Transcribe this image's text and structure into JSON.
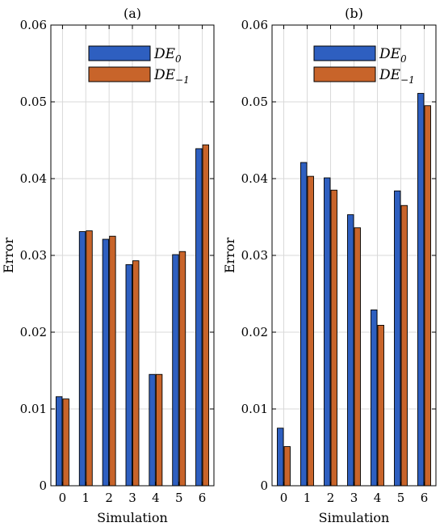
{
  "colors": {
    "series_0": "#2e5fc0",
    "series_1": "#c8642a",
    "grid": "#d9d9d9",
    "axis": "#000000"
  },
  "chart_data": [
    {
      "type": "bar",
      "title": "(a)",
      "xlabel": "Simulation",
      "ylabel": "Error",
      "categories": [
        "0",
        "1",
        "2",
        "3",
        "4",
        "5",
        "6"
      ],
      "ylim": [
        0,
        0.06
      ],
      "yticks": [
        "0",
        "0.01",
        "0.02",
        "0.03",
        "0.04",
        "0.05",
        "0.06"
      ],
      "grid": true,
      "legend_position": "top-right",
      "series": [
        {
          "name": "DE",
          "subscript": "0",
          "values": [
            0.0116,
            0.0331,
            0.0321,
            0.0288,
            0.0145,
            0.0301,
            0.0439
          ]
        },
        {
          "name": "DE",
          "subscript": "−1",
          "values": [
            0.0113,
            0.0332,
            0.0325,
            0.0293,
            0.0145,
            0.0305,
            0.0444
          ]
        }
      ]
    },
    {
      "type": "bar",
      "title": "(b)",
      "xlabel": "Simulation",
      "ylabel": "Error",
      "categories": [
        "0",
        "1",
        "2",
        "3",
        "4",
        "5",
        "6"
      ],
      "ylim": [
        0,
        0.06
      ],
      "yticks": [
        "0",
        "0.01",
        "0.02",
        "0.03",
        "0.04",
        "0.05",
        "0.06"
      ],
      "grid": true,
      "legend_position": "top-right",
      "series": [
        {
          "name": "DE",
          "subscript": "0",
          "values": [
            0.0075,
            0.0421,
            0.0401,
            0.0353,
            0.0229,
            0.0384,
            0.0511
          ]
        },
        {
          "name": "DE",
          "subscript": "−1",
          "values": [
            0.0051,
            0.0403,
            0.0385,
            0.0336,
            0.0209,
            0.0365,
            0.0495
          ]
        }
      ]
    }
  ]
}
